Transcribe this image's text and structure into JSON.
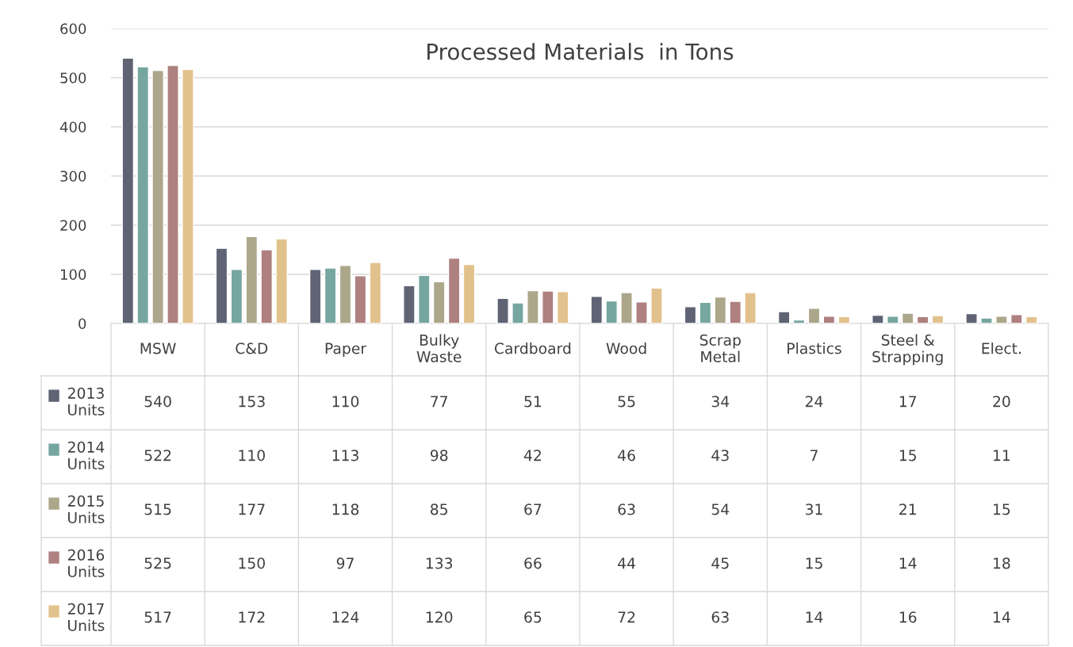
{
  "chart_data": {
    "type": "bar",
    "title": "Processed Materials  in Tons",
    "categories": [
      "MSW",
      "C&D",
      "Paper",
      "Bulky Waste",
      "Cardboard",
      "Wood",
      "Scrap Metal",
      "Plastics",
      "Steel & Strapping",
      "Elect."
    ],
    "series": [
      {
        "name": "2013 Units",
        "color": "#5f6374",
        "values": [
          540,
          153,
          110,
          77,
          51,
          55,
          34,
          24,
          17,
          20
        ]
      },
      {
        "name": "2014 Units",
        "color": "#76a6a0",
        "values": [
          522,
          110,
          113,
          98,
          42,
          46,
          43,
          7,
          15,
          11
        ]
      },
      {
        "name": "2015 Units",
        "color": "#aca78a",
        "values": [
          515,
          177,
          118,
          85,
          67,
          63,
          54,
          31,
          21,
          15
        ]
      },
      {
        "name": "2016 Units",
        "color": "#ae8080",
        "values": [
          525,
          150,
          97,
          133,
          66,
          44,
          45,
          15,
          14,
          18
        ]
      },
      {
        "name": "2017 Units",
        "color": "#e2c28c",
        "values": [
          517,
          172,
          124,
          120,
          65,
          72,
          63,
          14,
          16,
          14
        ]
      }
    ],
    "ylim": [
      0,
      600
    ],
    "yticks": [
      0,
      100,
      200,
      300,
      400,
      500,
      600
    ],
    "grid": "y",
    "legend": "bottom",
    "data_labels": true
  }
}
